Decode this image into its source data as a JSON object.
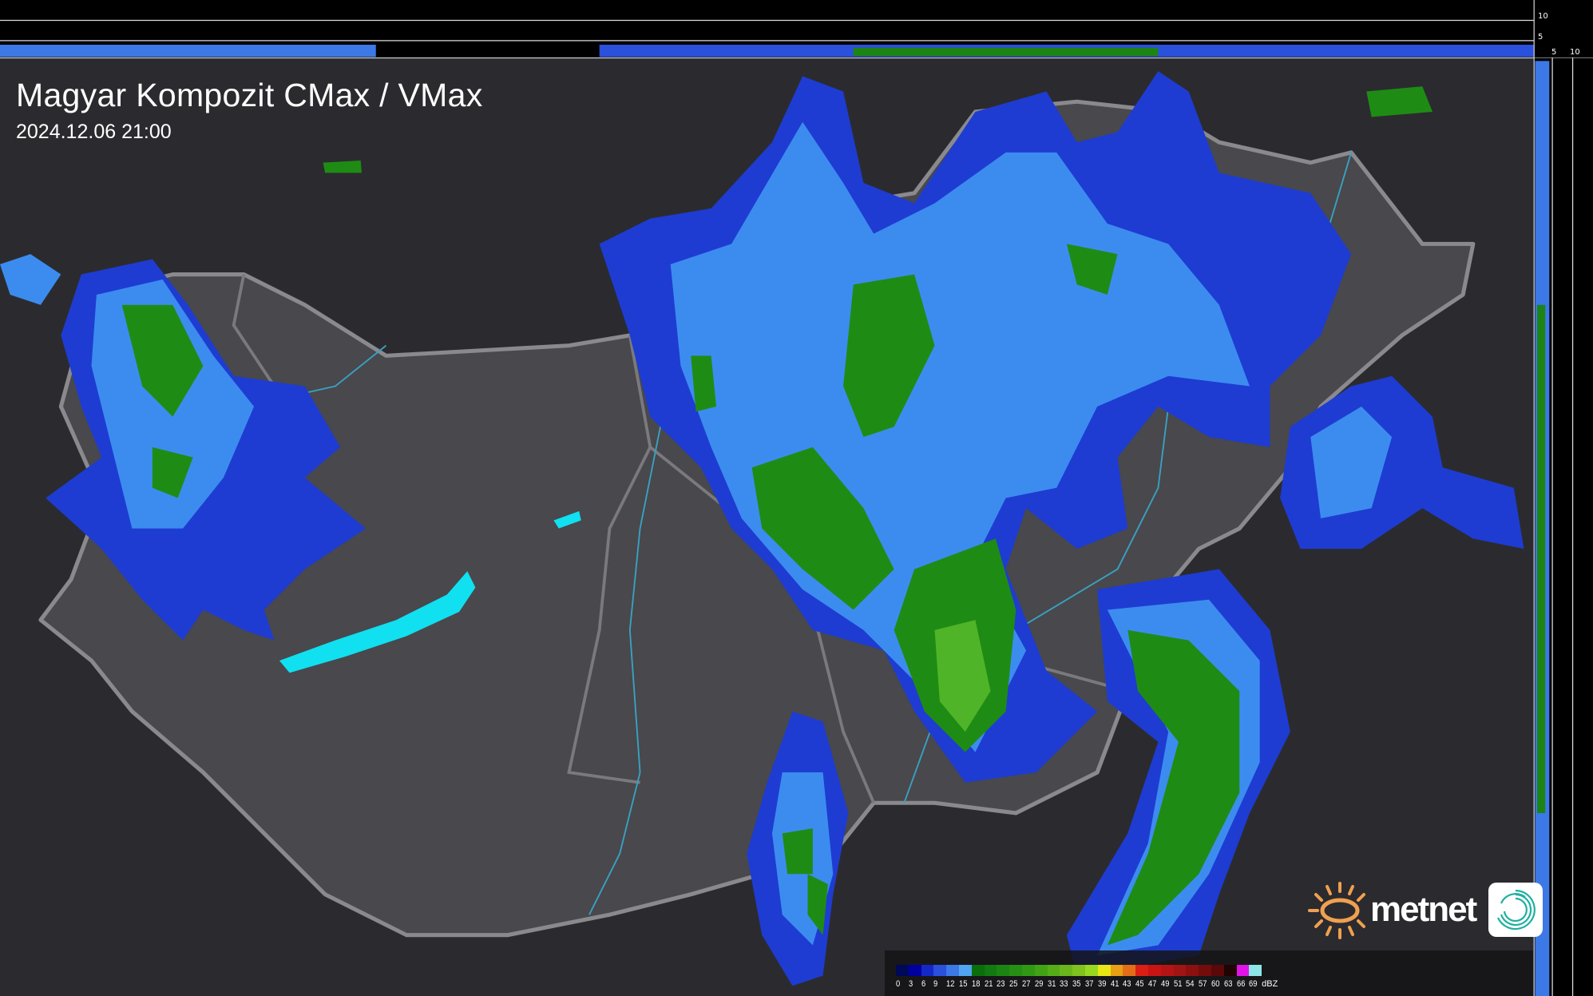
{
  "header": {
    "title": "Magyar Kompozit CMax / VMax",
    "timestamp": "2024.12.06 21:00"
  },
  "profile_axes": {
    "top_right": [
      "10",
      "5"
    ],
    "right_bottom": [
      "5",
      "10"
    ]
  },
  "legend": {
    "unit": "dBZ",
    "labels": [
      "0",
      "3",
      "6",
      "9",
      "12",
      "15",
      "18",
      "21",
      "23",
      "25",
      "27",
      "29",
      "31",
      "33",
      "35",
      "37",
      "39",
      "41",
      "43",
      "45",
      "47",
      "49",
      "51",
      "54",
      "57",
      "60",
      "63",
      "66",
      "69"
    ],
    "colors": [
      "#00085a",
      "#0000a0",
      "#1428c8",
      "#2a50dc",
      "#3c78e6",
      "#50a4f0",
      "#0a6e0a",
      "#127a10",
      "#1c8412",
      "#268e14",
      "#309814",
      "#42a216",
      "#56ac18",
      "#6ab61c",
      "#80c21e",
      "#98d820",
      "#e8e614",
      "#e8a014",
      "#e46e18",
      "#dc1e14",
      "#c81414",
      "#b41414",
      "#a01414",
      "#8c1010",
      "#740c0c",
      "#5a0808",
      "#200404",
      "#e014e6",
      "#e6a0e6"
    ],
    "last_color": "#8ce6e6"
  },
  "brand": {
    "logo_text": "metnet",
    "sun_color": "#f0a050",
    "icon_color": "#20b0a0"
  },
  "map_colors": {
    "background": "#2b2b2f",
    "country_fill": "#48484d",
    "border": "#8a8a8e",
    "river": "#3aa0c0",
    "lake": "#10e0f0"
  }
}
